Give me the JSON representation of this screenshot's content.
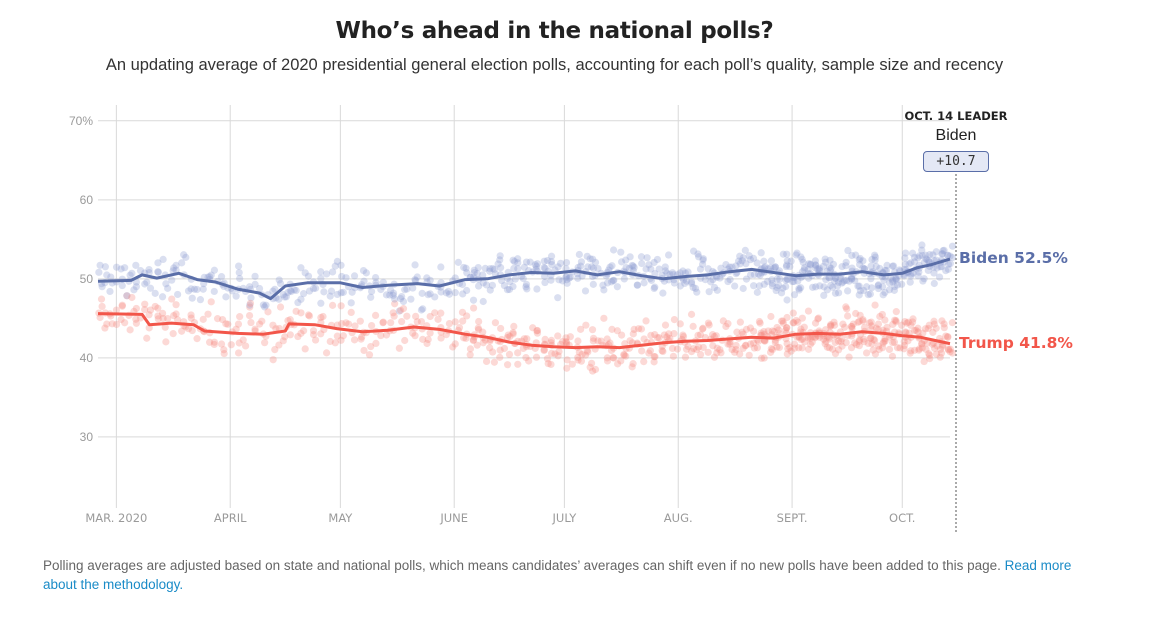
{
  "header": {
    "title": "Who’s ahead in the national polls?",
    "subtitle": "An updating average of 2020 presidential general election polls, accounting for each poll’s quality, sample size and recency"
  },
  "leader": {
    "label": "OCT. 14 LEADER",
    "name": "Biden",
    "margin": "+10.7"
  },
  "end_labels": {
    "biden": "Biden 52.5%",
    "trump": "Trump 41.8%"
  },
  "footnote": {
    "text": "Polling averages are adjusted based on state and national polls, which means candidates’ averages can shift even if no new polls have been added to this page.",
    "link": "Read more about the methodology."
  },
  "colors": {
    "biden": "#5a6ea8",
    "trump": "#f2564a",
    "biden_dot": "#8d9bd1",
    "trump_dot": "#f78a80",
    "grid": "#d9d9d9",
    "axis_text": "#9a9a9a"
  },
  "chart_data": {
    "type": "line",
    "x_type": "date",
    "x_range": [
      "2020-02-25",
      "2020-10-14"
    ],
    "ylim": [
      21,
      72
    ],
    "y_ticks": [
      {
        "value": 30,
        "label": "30"
      },
      {
        "value": 40,
        "label": "40"
      },
      {
        "value": 50,
        "label": "50"
      },
      {
        "value": 60,
        "label": "60"
      },
      {
        "value": 70,
        "label": "70%"
      }
    ],
    "x_ticks": [
      {
        "date": "2020-03-01",
        "label": "MAR. 2020"
      },
      {
        "date": "2020-04-01",
        "label": "APRIL"
      },
      {
        "date": "2020-05-01",
        "label": "MAY"
      },
      {
        "date": "2020-06-01",
        "label": "JUNE"
      },
      {
        "date": "2020-07-01",
        "label": "JULY"
      },
      {
        "date": "2020-08-01",
        "label": "AUG."
      },
      {
        "date": "2020-09-01",
        "label": "SEPT."
      },
      {
        "date": "2020-10-01",
        "label": "OCT."
      }
    ],
    "grid": true,
    "series": [
      {
        "name": "Biden",
        "color": "#5a6ea8",
        "points": [
          [
            "2020-02-25",
            49.7
          ],
          [
            "2020-03-05",
            49.8
          ],
          [
            "2020-03-08",
            50.5
          ],
          [
            "2020-03-12",
            50.1
          ],
          [
            "2020-03-18",
            50.7
          ],
          [
            "2020-03-23",
            49.9
          ],
          [
            "2020-03-28",
            49.6
          ],
          [
            "2020-04-03",
            48.7
          ],
          [
            "2020-04-09",
            48.2
          ],
          [
            "2020-04-12",
            47.5
          ],
          [
            "2020-04-16",
            49.1
          ],
          [
            "2020-04-22",
            49.5
          ],
          [
            "2020-05-01",
            49.5
          ],
          [
            "2020-05-07",
            48.9
          ],
          [
            "2020-05-14",
            49.2
          ],
          [
            "2020-05-22",
            49.4
          ],
          [
            "2020-05-28",
            49.1
          ],
          [
            "2020-06-04",
            49.9
          ],
          [
            "2020-06-10",
            50.0
          ],
          [
            "2020-06-16",
            50.5
          ],
          [
            "2020-06-22",
            50.8
          ],
          [
            "2020-06-28",
            50.7
          ],
          [
            "2020-07-04",
            51.0
          ],
          [
            "2020-07-10",
            50.5
          ],
          [
            "2020-07-16",
            50.9
          ],
          [
            "2020-07-22",
            50.4
          ],
          [
            "2020-07-28",
            50.0
          ],
          [
            "2020-08-03",
            50.3
          ],
          [
            "2020-08-09",
            50.5
          ],
          [
            "2020-08-15",
            50.9
          ],
          [
            "2020-08-21",
            51.2
          ],
          [
            "2020-08-27",
            50.8
          ],
          [
            "2020-09-02",
            50.4
          ],
          [
            "2020-09-08",
            50.6
          ],
          [
            "2020-09-14",
            50.6
          ],
          [
            "2020-09-20",
            50.9
          ],
          [
            "2020-09-26",
            50.5
          ],
          [
            "2020-10-01",
            50.7
          ],
          [
            "2020-10-05",
            51.4
          ],
          [
            "2020-10-09",
            51.8
          ],
          [
            "2020-10-14",
            52.5
          ]
        ]
      },
      {
        "name": "Trump",
        "color": "#f2564a",
        "points": [
          [
            "2020-02-25",
            45.6
          ],
          [
            "2020-03-08",
            45.5
          ],
          [
            "2020-03-10",
            44.2
          ],
          [
            "2020-03-16",
            44.4
          ],
          [
            "2020-03-22",
            44.2
          ],
          [
            "2020-03-25",
            43.4
          ],
          [
            "2020-04-03",
            43.1
          ],
          [
            "2020-04-10",
            43.0
          ],
          [
            "2020-04-16",
            43.4
          ],
          [
            "2020-04-17",
            44.3
          ],
          [
            "2020-04-24",
            44.2
          ],
          [
            "2020-04-30",
            43.7
          ],
          [
            "2020-05-07",
            43.3
          ],
          [
            "2020-05-14",
            43.5
          ],
          [
            "2020-05-21",
            43.9
          ],
          [
            "2020-05-28",
            43.6
          ],
          [
            "2020-06-04",
            43.0
          ],
          [
            "2020-06-10",
            42.6
          ],
          [
            "2020-06-16",
            42.0
          ],
          [
            "2020-06-22",
            41.6
          ],
          [
            "2020-06-28",
            41.4
          ],
          [
            "2020-07-04",
            41.3
          ],
          [
            "2020-07-10",
            41.4
          ],
          [
            "2020-07-16",
            41.3
          ],
          [
            "2020-07-22",
            41.6
          ],
          [
            "2020-07-28",
            41.9
          ],
          [
            "2020-08-03",
            42.1
          ],
          [
            "2020-08-09",
            42.2
          ],
          [
            "2020-08-15",
            42.4
          ],
          [
            "2020-08-21",
            42.6
          ],
          [
            "2020-08-27",
            42.5
          ],
          [
            "2020-09-02",
            43.0
          ],
          [
            "2020-09-08",
            43.1
          ],
          [
            "2020-09-14",
            43.0
          ],
          [
            "2020-09-20",
            43.3
          ],
          [
            "2020-09-26",
            43.1
          ],
          [
            "2020-10-01",
            42.8
          ],
          [
            "2020-10-06",
            42.6
          ],
          [
            "2020-10-10",
            42.2
          ],
          [
            "2020-10-14",
            41.8
          ]
        ]
      }
    ],
    "poll_dots": {
      "biden_center": 50.5,
      "trump_center": 42.5
    }
  }
}
